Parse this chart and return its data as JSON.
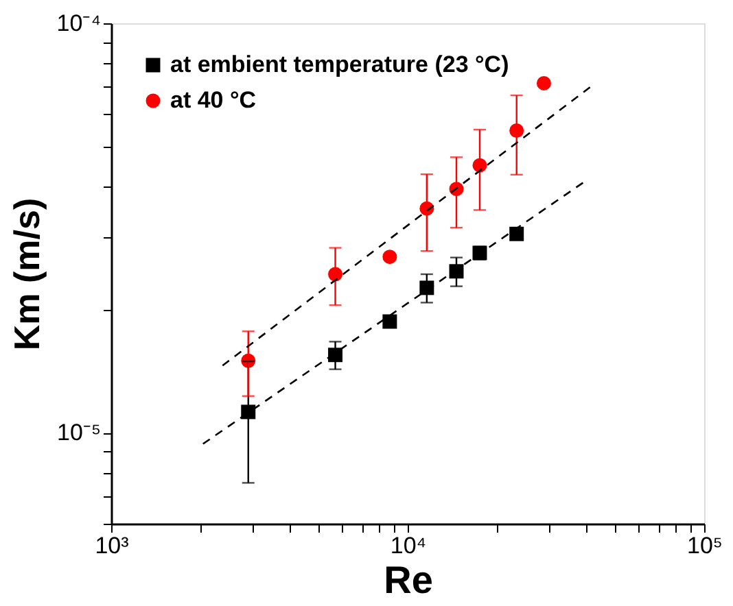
{
  "chart_data": {
    "type": "scatter",
    "xlabel": "Re",
    "ylabel": "Km (m/s)",
    "log": "xy",
    "legend": "top left",
    "grid": false,
    "xlim": [
      1000,
      100000
    ],
    "ylim": [
      6e-06,
      0.0001
    ],
    "xticks": [
      {
        "value": 1000,
        "label": "10³"
      },
      {
        "value": 2000,
        "label": null
      },
      {
        "value": 3000,
        "label": null
      },
      {
        "value": 4000,
        "label": null
      },
      {
        "value": 5000,
        "label": null
      },
      {
        "value": 6000,
        "label": null
      },
      {
        "value": 7000,
        "label": null
      },
      {
        "value": 8000,
        "label": null
      },
      {
        "value": 9000,
        "label": null
      },
      {
        "value": 10000,
        "label": "10⁴"
      },
      {
        "value": 20000,
        "label": null
      },
      {
        "value": 30000,
        "label": null
      },
      {
        "value": 40000,
        "label": null
      },
      {
        "value": 50000,
        "label": null
      },
      {
        "value": 60000,
        "label": null
      },
      {
        "value": 70000,
        "label": null
      },
      {
        "value": 80000,
        "label": null
      },
      {
        "value": 90000,
        "label": null
      },
      {
        "value": 100000,
        "label": "10⁵"
      }
    ],
    "yticks": [
      {
        "value": 6e-06,
        "label": null
      },
      {
        "value": 7e-06,
        "label": null
      },
      {
        "value": 8e-06,
        "label": null
      },
      {
        "value": 9e-06,
        "label": null
      },
      {
        "value": 1e-05,
        "label": "10⁻⁵"
      },
      {
        "value": 2e-05,
        "label": null
      },
      {
        "value": 3e-05,
        "label": null
      },
      {
        "value": 4e-05,
        "label": null
      },
      {
        "value": 5e-05,
        "label": null
      },
      {
        "value": 6e-05,
        "label": null
      },
      {
        "value": 7e-05,
        "label": null
      },
      {
        "value": 8e-05,
        "label": null
      },
      {
        "value": 9e-05,
        "label": null
      },
      {
        "value": 0.0001,
        "label": "10⁻⁴"
      }
    ],
    "series": [
      {
        "name": "at embient temperature (23 °C)",
        "marker": "square",
        "color": "#000000",
        "x": [
          2900,
          5700,
          8700,
          11600,
          14600,
          17500,
          23300
        ],
        "values": [
          1.125e-05,
          1.55e-05,
          1.87e-05,
          2.26e-05,
          2.48e-05,
          2.75e-05,
          3.06e-05
        ],
        "errors": [
          3.7e-06,
          1.2e-06,
          5e-07,
          1.8e-06,
          2e-06,
          1e-06,
          null
        ]
      },
      {
        "name": "at 40 °C",
        "marker": "circle",
        "color": "#ff0000",
        "x": [
          2900,
          5700,
          8700,
          11600,
          14600,
          17500,
          23300,
          28800
        ],
        "values": [
          1.5e-05,
          2.44e-05,
          2.69e-05,
          3.53e-05,
          3.94e-05,
          4.5e-05,
          5.47e-05,
          7.14e-05
        ],
        "errors": [
          2.7e-06,
          3.9e-06,
          null,
          7.5e-06,
          7.7e-06,
          1e-05,
          1.2e-05,
          null
        ]
      },
      {
        "type": "line",
        "line_style": "dashed",
        "marker": "none",
        "color": "#000000",
        "x": [
          2040,
          39200
        ],
        "values": [
          9.4e-06,
          4.09e-05
        ]
      },
      {
        "type": "line",
        "line_style": "dashed",
        "marker": "none",
        "color": "#000000",
        "x": [
          2375,
          41200
        ],
        "values": [
          1.46e-05,
          6.98e-05
        ]
      }
    ]
  }
}
